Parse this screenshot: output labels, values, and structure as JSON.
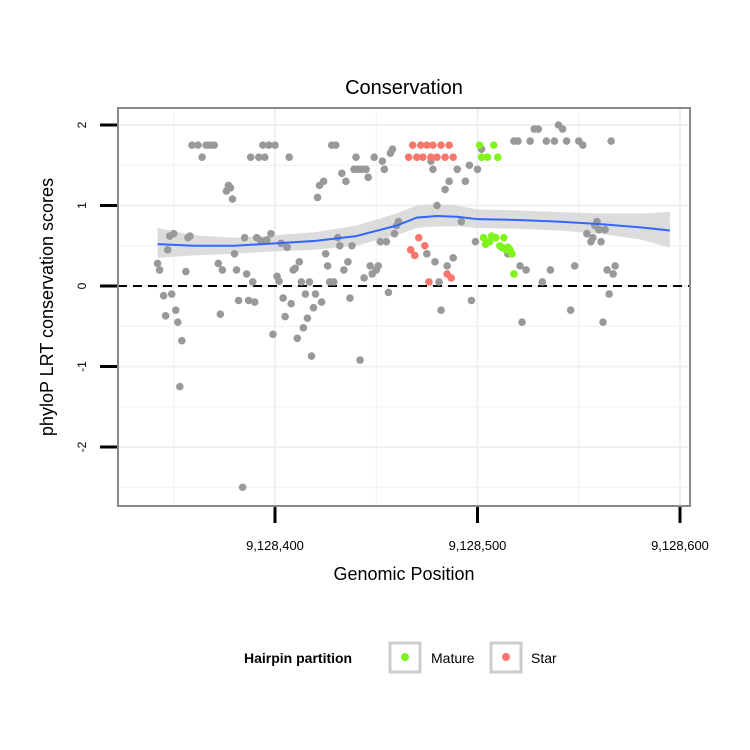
{
  "chart_data": {
    "type": "scatter",
    "title": "Conservation",
    "xlabel": "Genomic Position",
    "ylabel": "phyloP LRT conservation scores",
    "xlim": [
      9128330,
      9128600
    ],
    "ylim": [
      -2.65,
      2.2
    ],
    "x_ticks": [
      {
        "value": 9128400,
        "label": "9,128,400"
      },
      {
        "value": 9128500,
        "label": "9,128,500"
      },
      {
        "value": 9128600,
        "label": "9,128,600"
      }
    ],
    "y_ticks": [
      {
        "value": -2,
        "label": "-2"
      },
      {
        "value": -1,
        "label": "-1"
      },
      {
        "value": 0,
        "label": "0"
      },
      {
        "value": 1,
        "label": "1"
      },
      {
        "value": 2,
        "label": "2"
      }
    ],
    "reference_line": {
      "y": 0,
      "style": "dashed",
      "color": "#000000"
    },
    "grid": true,
    "colors": {
      "other": "#999999",
      "mature": "#7FF31A",
      "star": "#F8766D",
      "smooth": "#3366FF",
      "ribbon": "#D3D3D3",
      "panel_border": "#888888"
    },
    "legend": {
      "title": "Hairpin partition",
      "position": "bottom",
      "entries": [
        {
          "label": "Mature",
          "color": "#7FF31A"
        },
        {
          "label": "Star",
          "color": "#F8766D"
        }
      ]
    },
    "smooth": {
      "x": [
        9128342,
        9128360,
        9128380,
        9128400,
        9128420,
        9128440,
        9128460,
        9128470,
        9128480,
        9128490,
        9128500,
        9128520,
        9128540,
        9128560,
        9128580,
        9128595
      ],
      "y": [
        0.52,
        0.5,
        0.5,
        0.53,
        0.56,
        0.62,
        0.75,
        0.85,
        0.87,
        0.86,
        0.83,
        0.82,
        0.8,
        0.77,
        0.73,
        0.69
      ],
      "lower": [
        0.35,
        0.38,
        0.4,
        0.43,
        0.45,
        0.5,
        0.63,
        0.72,
        0.74,
        0.74,
        0.72,
        0.71,
        0.69,
        0.65,
        0.58,
        0.48
      ],
      "upper": [
        0.72,
        0.63,
        0.6,
        0.63,
        0.67,
        0.75,
        0.9,
        1.0,
        1.02,
        1.0,
        0.95,
        0.94,
        0.92,
        0.9,
        0.9,
        0.92
      ]
    },
    "series": [
      {
        "name": "Other",
        "points": [
          [
            9128342,
            0.28
          ],
          [
            9128343,
            0.2
          ],
          [
            9128345,
            -0.12
          ],
          [
            9128346,
            -0.37
          ],
          [
            9128347,
            0.45
          ],
          [
            9128348,
            0.62
          ],
          [
            9128349,
            -0.1
          ],
          [
            9128350,
            0.65
          ],
          [
            9128351,
            -0.3
          ],
          [
            9128352,
            -0.45
          ],
          [
            9128353,
            -1.25
          ],
          [
            9128354,
            -0.68
          ],
          [
            9128356,
            0.18
          ],
          [
            9128357,
            0.6
          ],
          [
            9128358,
            0.62
          ],
          [
            9128359,
            1.75
          ],
          [
            9128362,
            1.75
          ],
          [
            9128364,
            1.6
          ],
          [
            9128366,
            1.75
          ],
          [
            9128368,
            1.75
          ],
          [
            9128370,
            1.75
          ],
          [
            9128372,
            0.28
          ],
          [
            9128373,
            -0.35
          ],
          [
            9128374,
            0.2
          ],
          [
            9128376,
            1.18
          ],
          [
            9128377,
            1.25
          ],
          [
            9128378,
            1.22
          ],
          [
            9128379,
            1.08
          ],
          [
            9128380,
            0.4
          ],
          [
            9128381,
            0.2
          ],
          [
            9128382,
            -0.18
          ],
          [
            9128384,
            -2.5
          ],
          [
            9128385,
            0.6
          ],
          [
            9128386,
            0.15
          ],
          [
            9128387,
            -0.18
          ],
          [
            9128388,
            1.6
          ],
          [
            9128389,
            0.05
          ],
          [
            9128390,
            -0.2
          ],
          [
            9128391,
            0.6
          ],
          [
            9128392,
            1.6
          ],
          [
            9128393,
            0.56
          ],
          [
            9128394,
            1.75
          ],
          [
            9128395,
            1.6
          ],
          [
            9128396,
            0.57
          ],
          [
            9128397,
            1.75
          ],
          [
            9128398,
            0.65
          ],
          [
            9128399,
            -0.6
          ],
          [
            9128400,
            1.75
          ],
          [
            9128401,
            0.12
          ],
          [
            9128402,
            0.06
          ],
          [
            9128403,
            0.53
          ],
          [
            9128404,
            -0.15
          ],
          [
            9128405,
            -0.38
          ],
          [
            9128406,
            0.48
          ],
          [
            9128407,
            1.6
          ],
          [
            9128408,
            -0.22
          ],
          [
            9128409,
            0.2
          ],
          [
            9128410,
            0.22
          ],
          [
            9128411,
            -0.65
          ],
          [
            9128412,
            0.3
          ],
          [
            9128413,
            0.05
          ],
          [
            9128414,
            -0.52
          ],
          [
            9128415,
            -0.1
          ],
          [
            9128416,
            -0.4
          ],
          [
            9128417,
            0.05
          ],
          [
            9128418,
            -0.87
          ],
          [
            9128419,
            -0.27
          ],
          [
            9128420,
            -0.1
          ],
          [
            9128421,
            1.1
          ],
          [
            9128422,
            1.25
          ],
          [
            9128423,
            -0.2
          ],
          [
            9128424,
            1.3
          ],
          [
            9128425,
            0.4
          ],
          [
            9128426,
            0.25
          ],
          [
            9128427,
            0.05
          ],
          [
            9128428,
            1.75
          ],
          [
            9128429,
            0.05
          ],
          [
            9128430,
            1.75
          ],
          [
            9128431,
            0.6
          ],
          [
            9128432,
            0.5
          ],
          [
            9128433,
            1.4
          ],
          [
            9128434,
            0.2
          ],
          [
            9128435,
            1.3
          ],
          [
            9128436,
            0.3
          ],
          [
            9128437,
            -0.15
          ],
          [
            9128438,
            0.5
          ],
          [
            9128439,
            1.45
          ],
          [
            9128440,
            1.6
          ],
          [
            9128441,
            1.45
          ],
          [
            9128442,
            -0.92
          ],
          [
            9128443,
            1.45
          ],
          [
            9128444,
            0.1
          ],
          [
            9128445,
            1.45
          ],
          [
            9128446,
            1.35
          ],
          [
            9128447,
            0.25
          ],
          [
            9128448,
            0.15
          ],
          [
            9128449,
            1.6
          ],
          [
            9128450,
            0.2
          ],
          [
            9128451,
            0.25
          ],
          [
            9128452,
            0.55
          ],
          [
            9128453,
            1.55
          ],
          [
            9128454,
            1.45
          ],
          [
            9128455,
            0.55
          ],
          [
            9128456,
            -0.08
          ],
          [
            9128457,
            1.65
          ],
          [
            9128458,
            1.7
          ],
          [
            9128459,
            0.65
          ],
          [
            9128460,
            0.75
          ],
          [
            9128461,
            0.8
          ],
          [
            9128475,
            0.4
          ],
          [
            9128477,
            1.55
          ],
          [
            9128478,
            1.45
          ],
          [
            9128479,
            0.3
          ],
          [
            9128480,
            1.0
          ],
          [
            9128481,
            0.05
          ],
          [
            9128482,
            -0.3
          ],
          [
            9128484,
            1.2
          ],
          [
            9128485,
            0.25
          ],
          [
            9128486,
            1.3
          ],
          [
            9128488,
            0.35
          ],
          [
            9128490,
            1.45
          ],
          [
            9128492,
            0.8
          ],
          [
            9128494,
            1.3
          ],
          [
            9128496,
            1.5
          ],
          [
            9128497,
            -0.18
          ],
          [
            9128499,
            0.55
          ],
          [
            9128500,
            1.45
          ],
          [
            9128502,
            1.7
          ],
          [
            9128515,
            0.4
          ],
          [
            9128518,
            1.8
          ],
          [
            9128520,
            1.8
          ],
          [
            9128521,
            0.25
          ],
          [
            9128522,
            -0.45
          ],
          [
            9128524,
            0.2
          ],
          [
            9128526,
            1.8
          ],
          [
            9128528,
            1.95
          ],
          [
            9128530,
            1.95
          ],
          [
            9128532,
            0.05
          ],
          [
            9128534,
            1.8
          ],
          [
            9128536,
            0.2
          ],
          [
            9128538,
            1.8
          ],
          [
            9128540,
            2.0
          ],
          [
            9128542,
            1.95
          ],
          [
            9128544,
            1.8
          ],
          [
            9128546,
            -0.3
          ],
          [
            9128548,
            0.25
          ],
          [
            9128550,
            1.8
          ],
          [
            9128552,
            1.75
          ],
          [
            9128554,
            0.65
          ],
          [
            9128556,
            0.55
          ],
          [
            9128557,
            0.6
          ],
          [
            9128558,
            0.75
          ],
          [
            9128559,
            0.8
          ],
          [
            9128560,
            0.7
          ],
          [
            9128561,
            0.55
          ],
          [
            9128562,
            -0.45
          ],
          [
            9128563,
            0.7
          ],
          [
            9128564,
            0.2
          ],
          [
            9128565,
            -0.1
          ],
          [
            9128566,
            1.8
          ],
          [
            9128567,
            0.15
          ],
          [
            9128568,
            0.25
          ]
        ]
      },
      {
        "name": "Mature",
        "points": [
          [
            9128501,
            1.75
          ],
          [
            9128502,
            1.6
          ],
          [
            9128503,
            0.6
          ],
          [
            9128504,
            0.52
          ],
          [
            9128505,
            1.6
          ],
          [
            9128506,
            0.55
          ],
          [
            9128507,
            0.62
          ],
          [
            9128508,
            1.75
          ],
          [
            9128509,
            0.6
          ],
          [
            9128510,
            1.6
          ],
          [
            9128511,
            0.5
          ],
          [
            9128512,
            0.48
          ],
          [
            9128513,
            0.6
          ],
          [
            9128514,
            0.45
          ],
          [
            9128515,
            0.48
          ],
          [
            9128516,
            0.45
          ],
          [
            9128517,
            0.4
          ],
          [
            9128518,
            0.15
          ]
        ]
      },
      {
        "name": "Star",
        "points": [
          [
            9128466,
            1.6
          ],
          [
            9128467,
            0.45
          ],
          [
            9128468,
            1.75
          ],
          [
            9128469,
            0.38
          ],
          [
            9128470,
            1.6
          ],
          [
            9128471,
            0.6
          ],
          [
            9128472,
            1.75
          ],
          [
            9128473,
            1.6
          ],
          [
            9128474,
            0.5
          ],
          [
            9128475,
            1.75
          ],
          [
            9128476,
            0.05
          ],
          [
            9128477,
            1.6
          ],
          [
            9128478,
            1.75
          ],
          [
            9128480,
            1.6
          ],
          [
            9128482,
            1.75
          ],
          [
            9128484,
            1.6
          ],
          [
            9128485,
            0.15
          ],
          [
            9128486,
            1.75
          ],
          [
            9128487,
            0.1
          ],
          [
            9128488,
            1.6
          ]
        ]
      }
    ]
  }
}
